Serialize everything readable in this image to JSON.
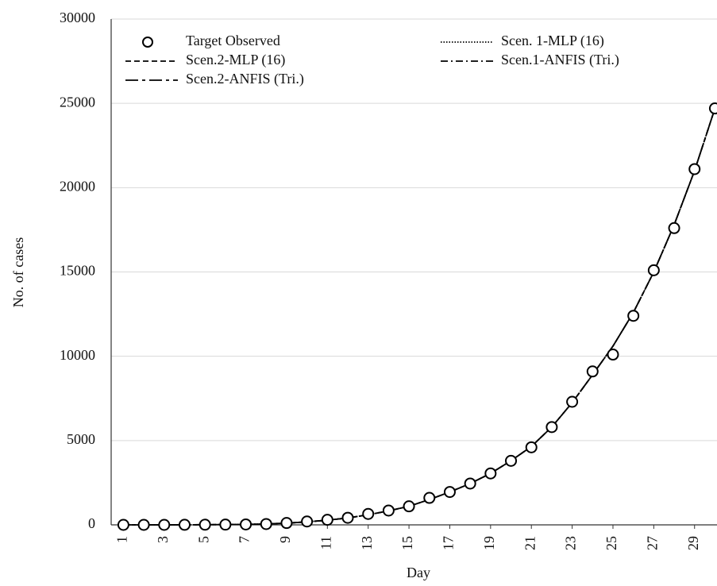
{
  "chart_data": {
    "type": "line",
    "x_label": "Day",
    "y_label": "No. of cases",
    "x": [
      1,
      2,
      3,
      4,
      5,
      6,
      7,
      8,
      9,
      10,
      11,
      12,
      13,
      14,
      15,
      16,
      17,
      18,
      19,
      20,
      21,
      22,
      23,
      24,
      25,
      26,
      27,
      28,
      29,
      30
    ],
    "xlim": [
      0.4,
      30.1
    ],
    "xticks": [
      1,
      3,
      5,
      7,
      9,
      11,
      13,
      15,
      17,
      19,
      21,
      23,
      25,
      27,
      29
    ],
    "ylim": [
      0,
      30000
    ],
    "yticks": [
      0,
      5000,
      10000,
      15000,
      20000,
      25000,
      30000
    ],
    "grid": true,
    "legend": "upper left",
    "series": [
      {
        "name": "Target Observed",
        "color": "#000000",
        "marker": "circle",
        "dash": "none",
        "values": [
          0,
          0,
          0,
          5,
          10,
          15,
          25,
          50,
          110,
          200,
          300,
          420,
          650,
          850,
          1100,
          1600,
          1950,
          2450,
          3050,
          3800,
          4600,
          5800,
          7300,
          9100,
          10100,
          12400,
          15100,
          17600,
          21100,
          24700
        ]
      },
      {
        "name": "Scen. 1-MLP (16)",
        "color": "#000000",
        "dash": "dotted",
        "values": [
          0,
          0,
          2,
          5,
          10,
          18,
          30,
          55,
          100,
          180,
          280,
          410,
          600,
          830,
          1100,
          1500,
          1950,
          2450,
          3050,
          3800,
          4650,
          5800,
          7250,
          8900,
          10600,
          12600,
          15000,
          17800,
          21000,
          24700
        ]
      },
      {
        "name": "Scen.2-MLP (16)",
        "color": "#000000",
        "dash": "dashed",
        "values": [
          0,
          0,
          2,
          5,
          10,
          18,
          30,
          55,
          100,
          180,
          280,
          410,
          600,
          830,
          1100,
          1500,
          1950,
          2450,
          3050,
          3800,
          4650,
          5800,
          7250,
          8900,
          10600,
          12600,
          15000,
          17800,
          21000,
          24700
        ]
      },
      {
        "name": "Scen.1-ANFIS (Tri.)",
        "color": "#000000",
        "dash": "dashdot",
        "values": [
          0,
          0,
          2,
          5,
          10,
          18,
          30,
          55,
          100,
          180,
          280,
          410,
          600,
          830,
          1100,
          1500,
          1950,
          2450,
          3050,
          3800,
          4650,
          5800,
          7250,
          8900,
          10600,
          12600,
          15000,
          17800,
          21000,
          24700
        ]
      },
      {
        "name": "Scen.2-ANFIS (Tri.)",
        "color": "#000000",
        "dash": "longdash",
        "values": [
          0,
          0,
          2,
          5,
          10,
          18,
          30,
          55,
          100,
          180,
          280,
          410,
          600,
          830,
          1100,
          1500,
          1950,
          2450,
          3050,
          3800,
          4650,
          5800,
          7250,
          8900,
          10600,
          12600,
          15000,
          17800,
          21000,
          24700
        ]
      }
    ]
  }
}
